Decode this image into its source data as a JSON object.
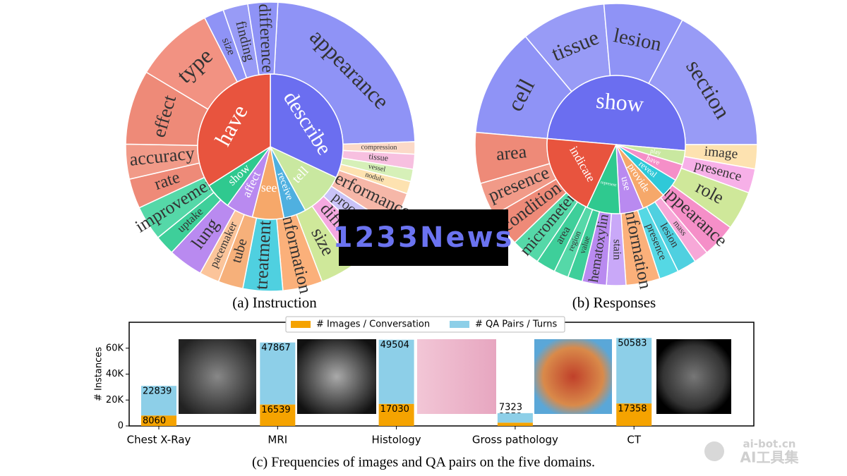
{
  "sunbursts": [
    {
      "caption": "(a) Instruction",
      "inner": [
        {
          "label": "describe",
          "size": 32,
          "color": "#6b6ef0"
        },
        {
          "label": "tell",
          "size": 10,
          "color": "#c9e8a0"
        },
        {
          "label": "receive",
          "size": 5,
          "color": "#4fb0e0"
        },
        {
          "label": "see",
          "size": 7,
          "color": "#f6a86a"
        },
        {
          "label": "affect",
          "size": 6,
          "color": "#b98af0"
        },
        {
          "label": "show",
          "size": 6,
          "color": "#2fc98f"
        },
        {
          "label": "have",
          "size": 34,
          "color": "#e8543e"
        }
      ],
      "outer": [
        {
          "label": "appearance",
          "size": 85,
          "color": "#8f93f6"
        },
        {
          "label": "compression",
          "size": 5,
          "color": "#fbd9c8"
        },
        {
          "label": "tissue",
          "size": 6,
          "color": "#f7c0e0"
        },
        {
          "label": "vessel",
          "size": 5,
          "color": "#d6f0b8"
        },
        {
          "label": "nodule",
          "size": 5,
          "color": "#fde2b0"
        },
        {
          "label": "performance",
          "size": 14,
          "color": "#f6b7a8"
        },
        {
          "label": "procedure",
          "size": 10,
          "color": "#c9c3f8"
        },
        {
          "label": "different",
          "size": 12,
          "color": "#f5a8e0"
        },
        {
          "label": "size",
          "size": 14,
          "color": "#cfe89a"
        },
        {
          "label": "information",
          "size": 16,
          "color": "#fbb07a"
        },
        {
          "label": "treatment",
          "size": 16,
          "color": "#4fd0e0"
        },
        {
          "label": "tube",
          "size": 10,
          "color": "#f6b07a"
        },
        {
          "label": "pacemaker",
          "size": 8,
          "color": "#fbc49a"
        },
        {
          "label": "lung",
          "size": 14,
          "color": "#b98af0"
        },
        {
          "label": "uptake",
          "size": 8,
          "color": "#3ecf9a"
        },
        {
          "label": "improvement",
          "size": 14,
          "color": "#55d8a8"
        },
        {
          "label": "rate",
          "size": 12,
          "color": "#ee8a78"
        },
        {
          "label": "accuracy",
          "size": 14,
          "color": "#f19a88"
        },
        {
          "label": "effect",
          "size": 30,
          "color": "#ee8a78"
        },
        {
          "label": "type",
          "size": 32,
          "color": "#f29282"
        },
        {
          "label": "size",
          "size": 8,
          "color": "#8f93f6"
        },
        {
          "label": "finding",
          "size": 10,
          "color": "#989bf6"
        },
        {
          "label": "difference",
          "size": 12,
          "color": "#8f93f6"
        }
      ]
    },
    {
      "caption": "(b) Responses",
      "inner": [
        {
          "label": "show",
          "size": 180,
          "color": "#6b6ef0"
        },
        {
          "label": "play",
          "size": 12,
          "color": "#c9e8a0"
        },
        {
          "label": "have",
          "size": 14,
          "color": "#f58fc8"
        },
        {
          "label": "reveal",
          "size": 16,
          "color": "#2fc9d8"
        },
        {
          "label": "provide",
          "size": 20,
          "color": "#f6a86a"
        },
        {
          "label": "use",
          "size": 20,
          "color": "#b98af0"
        },
        {
          "label": "represent",
          "size": 28,
          "color": "#2fc98f"
        },
        {
          "label": "indicate",
          "size": 70,
          "color": "#e8543e"
        }
      ],
      "outer": [
        {
          "label": "cell",
          "size": 45,
          "color": "#8f93f6"
        },
        {
          "label": "tissue",
          "size": 35,
          "color": "#989bf6"
        },
        {
          "label": "lesion",
          "size": 33,
          "color": "#8f93f6"
        },
        {
          "label": "section",
          "size": 62,
          "color": "#989bf6"
        },
        {
          "label": "image",
          "size": 10,
          "color": "#fde2b0"
        },
        {
          "label": "presence",
          "size": 10,
          "color": "#f7b0e8"
        },
        {
          "label": "role",
          "size": 16,
          "color": "#cfe89a"
        },
        {
          "label": "appearance",
          "size": 14,
          "color": "#f58fc8"
        },
        {
          "label": "mass",
          "size": 6,
          "color": "#f7a8d8"
        },
        {
          "label": "lesion",
          "size": 8,
          "color": "#4fd0e0"
        },
        {
          "label": "presence",
          "size": 8,
          "color": "#55d8e4"
        },
        {
          "label": "information",
          "size": 14,
          "color": "#fbb07a"
        },
        {
          "label": "stain",
          "size": 8,
          "color": "#c9a8f8"
        },
        {
          "label": "hematoxylin",
          "size": 10,
          "color": "#b98af0"
        },
        {
          "label": "value",
          "size": 6,
          "color": "#3ecf9a"
        },
        {
          "label": "region",
          "size": 6,
          "color": "#55d8a8"
        },
        {
          "label": "area",
          "size": 8,
          "color": "#3ecf9a"
        },
        {
          "label": "micrometer",
          "size": 12,
          "color": "#55d8a8"
        },
        {
          "label": "condition",
          "size": 14,
          "color": "#ee8a78"
        },
        {
          "label": "presence",
          "size": 14,
          "color": "#f19a88"
        },
        {
          "label": "area",
          "size": 21,
          "color": "#ee8a78"
        }
      ]
    }
  ],
  "chart_data": {
    "type": "bar",
    "stacked": true,
    "categories": [
      "Chest X-Ray",
      "MRI",
      "Histology",
      "Gross pathology",
      "CT"
    ],
    "series": [
      {
        "name": "# Images / Conversation",
        "color": "#f5a300",
        "values": [
          8060,
          16539,
          17030,
          2552,
          17358
        ]
      },
      {
        "name": "# QA Pairs / Turns",
        "color": "#8dcfe8",
        "values": [
          22839,
          47867,
          49504,
          7323,
          50583
        ]
      }
    ],
    "ylabel": "# Instances",
    "ylim": [
      0,
      80000
    ],
    "yticks": [
      0,
      {
        "value": 20000,
        "label": "20K"
      },
      {
        "value": 40000,
        "label": "40K"
      },
      {
        "value": 60000,
        "label": "60K"
      }
    ],
    "caption": "(c) Frequencies of images and QA pairs on the five domains."
  },
  "watermarks": {
    "news": "1233News",
    "site": "ai-bot.cn",
    "brand": "AI工具集"
  }
}
